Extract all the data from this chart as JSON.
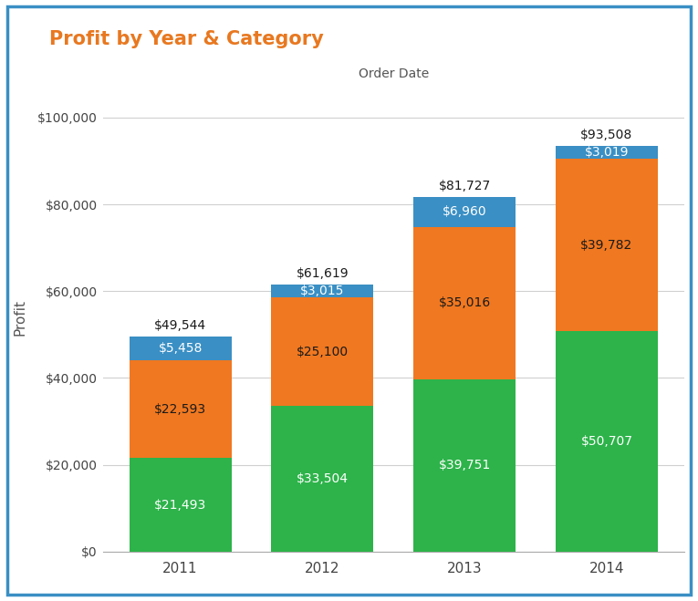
{
  "title": "Profit by Year & Category",
  "xlabel": "Order Date",
  "ylabel": "Profit",
  "years": [
    "2011",
    "2012",
    "2013",
    "2014"
  ],
  "furniture": [
    21493,
    33504,
    39751,
    50707
  ],
  "office": [
    22593,
    25100,
    35016,
    39782
  ],
  "technology": [
    5458,
    3015,
    6960,
    3019
  ],
  "totals": [
    49544,
    61619,
    81727,
    93508
  ],
  "color_furniture": "#2db34a",
  "color_office": "#f07820",
  "color_technology": "#3a8fc4",
  "bg_color": "#ffffff",
  "border_color": "#3a8fc4",
  "title_color": "#e87820",
  "label_color_dark": "#1a1a1a",
  "label_color_white": "#ffffff",
  "ylim": [
    0,
    108000
  ],
  "yticks": [
    0,
    20000,
    40000,
    60000,
    80000,
    100000
  ],
  "bar_width": 0.72,
  "figure_width": 7.65,
  "figure_height": 6.59,
  "dpi": 100
}
